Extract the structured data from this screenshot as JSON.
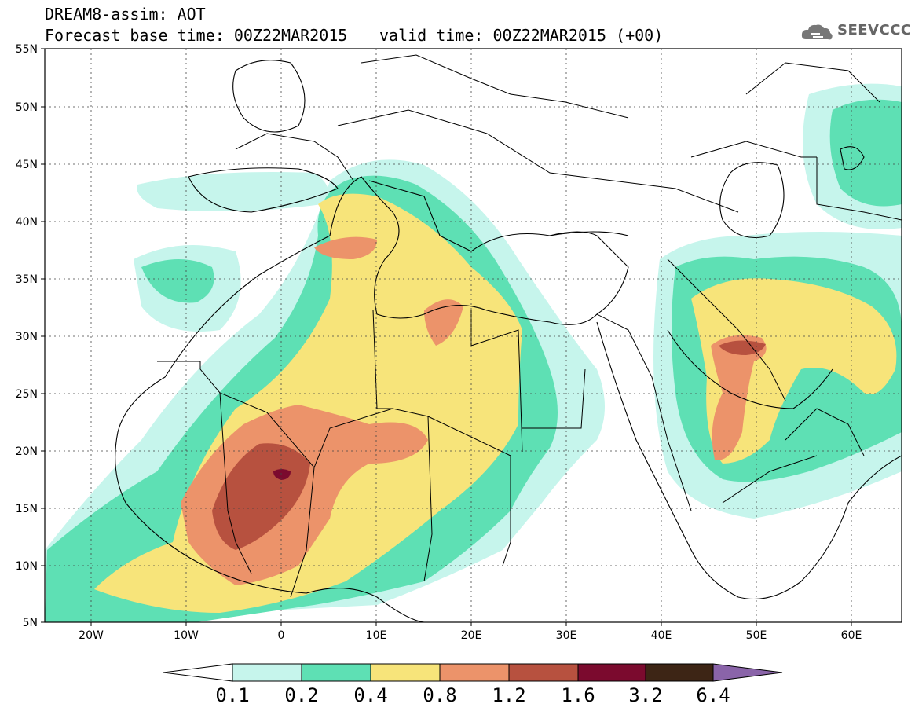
{
  "header": {
    "title_line1": "DREAM8-assim: AOT",
    "title_line2": "Forecast base time: 00Z22MAR2015",
    "valid_time": "valid time: 00Z22MAR2015 (+00)",
    "brand": "SEEVCCC",
    "brand_icon": "cloud-logo-icon"
  },
  "map": {
    "lat_labels": [
      "55N",
      "50N",
      "45N",
      "40N",
      "35N",
      "30N",
      "25N",
      "20N",
      "15N",
      "10N",
      "5N"
    ],
    "lon_labels": [
      "20W",
      "10W",
      "0",
      "10E",
      "20E",
      "30E",
      "40E",
      "50E",
      "60E"
    ]
  },
  "colorbar": {
    "labels": [
      "0.1",
      "0.2",
      "0.4",
      "0.8",
      "1.2",
      "1.6",
      "3.2",
      "6.4"
    ],
    "colors": [
      "#c6f5ec",
      "#5ee0b4",
      "#f7e47a",
      "#ec936a",
      "#b7513f",
      "#7b0a2e",
      "#3d2515",
      "#8a64a9"
    ]
  }
}
